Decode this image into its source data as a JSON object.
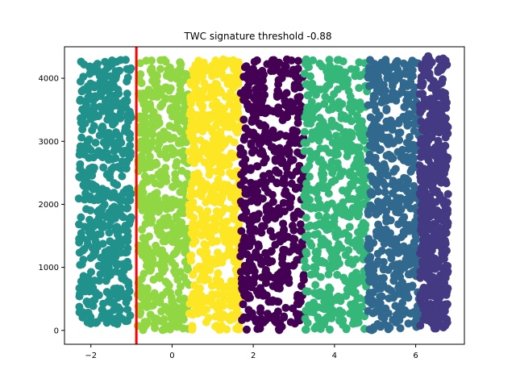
{
  "chart_data": {
    "type": "scatter",
    "title": "TWC signature threshold -0.88",
    "xlabel": "",
    "ylabel": "",
    "xlim": [
      -2.65,
      7.2
    ],
    "ylim": [
      -220,
      4500
    ],
    "xticks": [
      -2,
      0,
      2,
      4,
      6
    ],
    "yticks": [
      0,
      1000,
      2000,
      3000,
      4000
    ],
    "grid": false,
    "threshold_line": {
      "x": -0.88,
      "color": "#ff0000"
    },
    "bands": [
      {
        "x_min": -2.3,
        "x_max": -1.0,
        "y_min": 100,
        "y_max": 4300,
        "color": "#21918c"
      },
      {
        "x_min": -0.85,
        "x_max": 0.42,
        "y_min": 0,
        "y_max": 4300,
        "color": "#90d743"
      },
      {
        "x_min": 0.42,
        "x_max": 1.68,
        "y_min": 0,
        "y_max": 4300,
        "color": "#fde725"
      },
      {
        "x_min": 1.68,
        "x_max": 3.25,
        "y_min": 0,
        "y_max": 4300,
        "color": "#440154"
      },
      {
        "x_min": 3.25,
        "x_max": 4.82,
        "y_min": 0,
        "y_max": 4300,
        "color": "#35b779"
      },
      {
        "x_min": 4.82,
        "x_max": 6.1,
        "y_min": 0,
        "y_max": 4300,
        "color": "#31688e"
      },
      {
        "x_min": 6.1,
        "x_max": 6.8,
        "y_min": 0,
        "y_max": 4350,
        "color": "#443983"
      }
    ]
  }
}
